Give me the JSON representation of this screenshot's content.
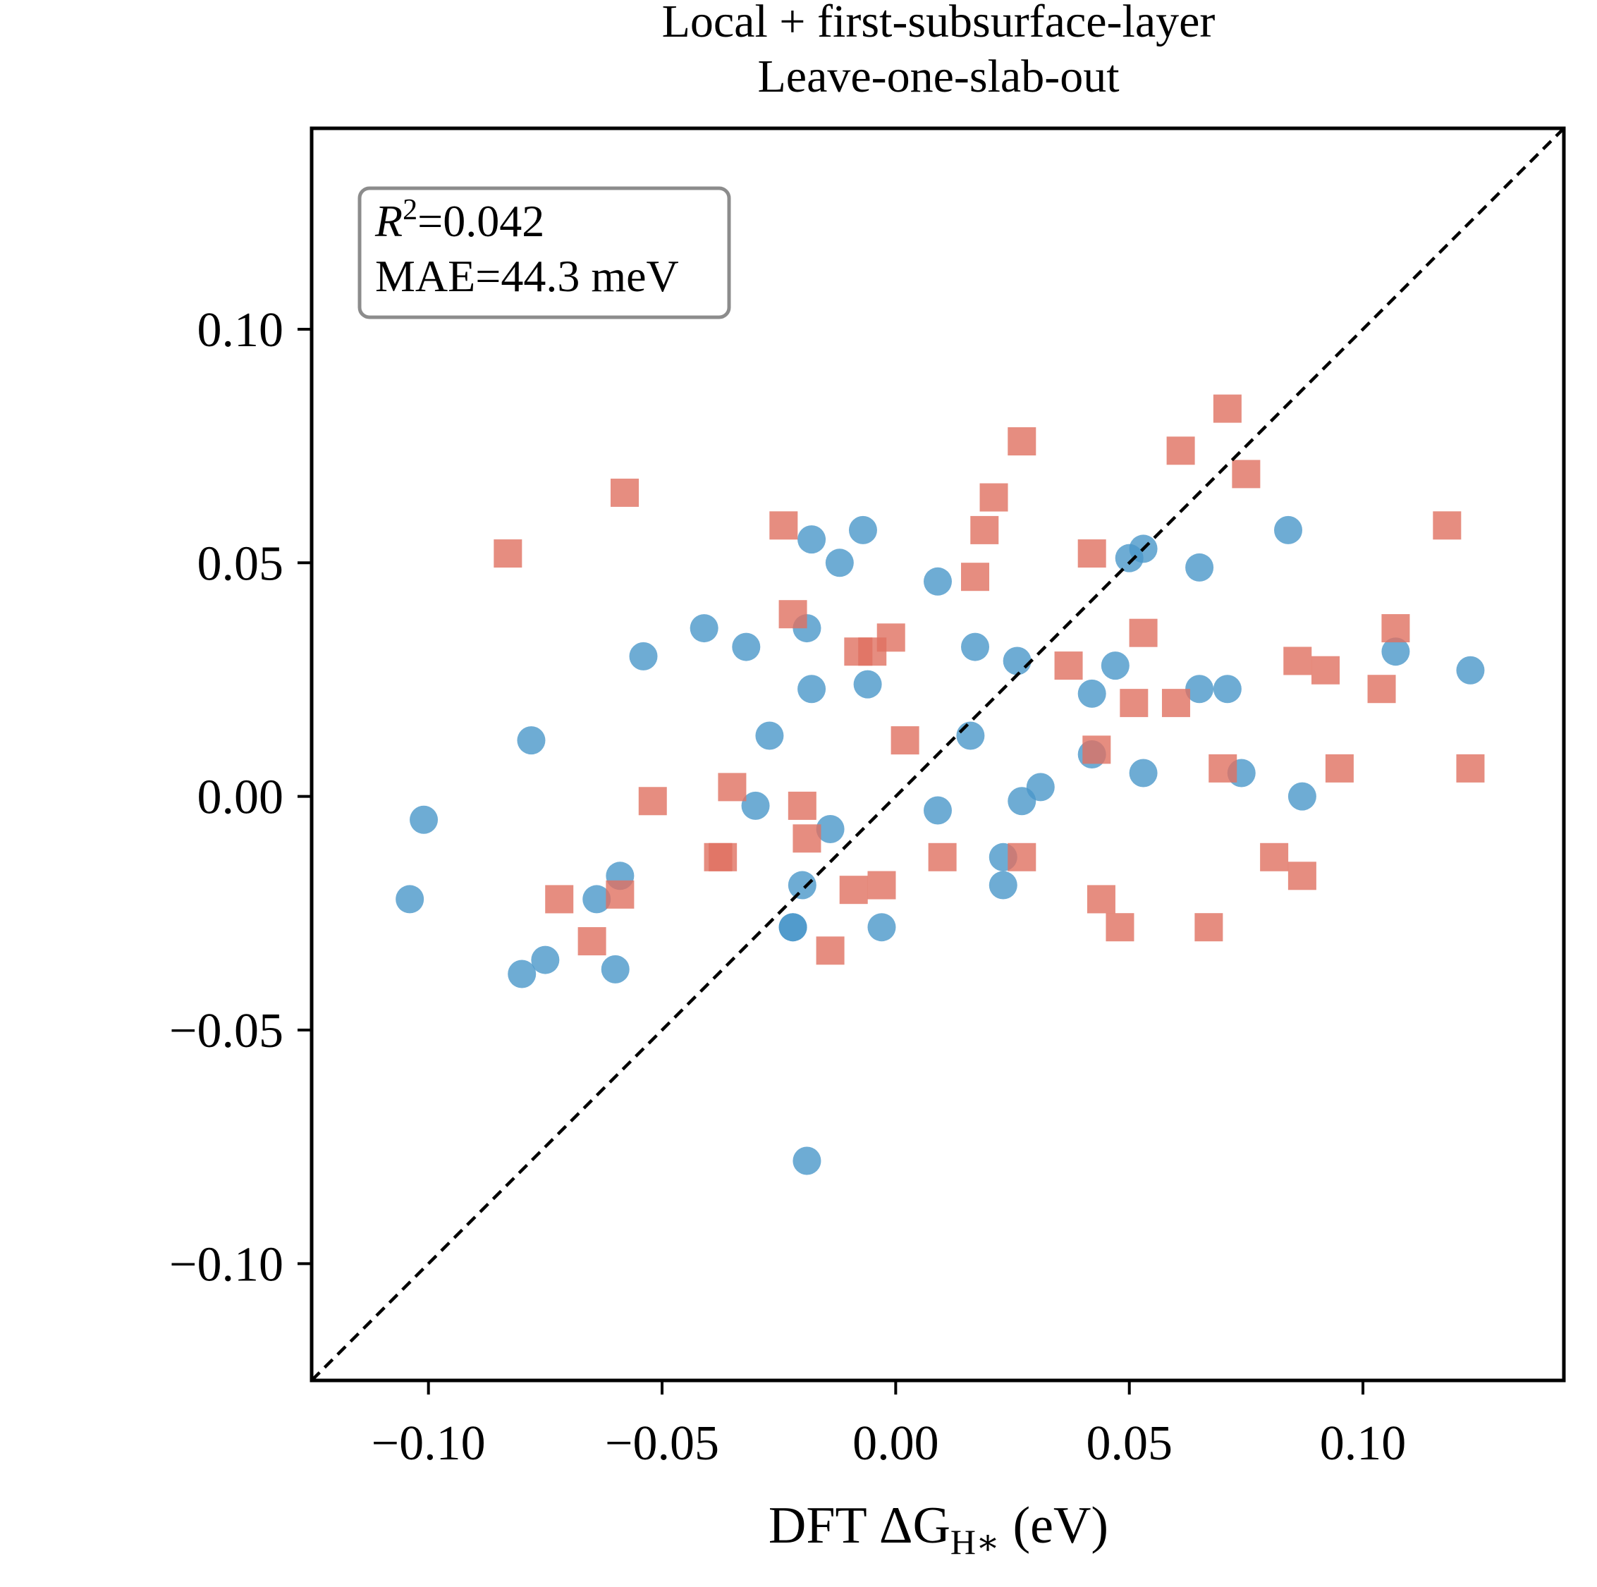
{
  "chart_data": {
    "type": "scatter",
    "title": "Local + first-subsurface-layer",
    "subtitle": "Leave-one-slab-out",
    "xlabel": "DFT ΔG",
    "xlabel_sub": "H∗",
    "xlabel_unit": " (eV)",
    "ylabel": "",
    "xlim": [
      -0.125,
      0.143
    ],
    "ylim": [
      -0.125,
      0.143
    ],
    "xticks": [
      -0.1,
      -0.05,
      0.0,
      0.05,
      0.1
    ],
    "yticks": [
      -0.1,
      -0.05,
      0.0,
      0.05,
      0.1
    ],
    "xtick_labels": [
      "−0.10",
      "−0.05",
      "0.00",
      "0.05",
      "0.10"
    ],
    "ytick_labels": [
      "−0.10",
      "−0.05",
      "0.00",
      "0.05",
      "0.10"
    ],
    "grid": false,
    "legend": "none",
    "reference_line": {
      "type": "y=x",
      "style": "dashed",
      "color": "#000000"
    },
    "stats_box": {
      "r2_symbol": "R",
      "r2_exponent": "2",
      "r2_value": "=0.042",
      "mae": "MAE=44.3 meV"
    },
    "series": [
      {
        "marker": "circle",
        "color": "#4a97c9",
        "points": [
          [
            -0.104,
            -0.022
          ],
          [
            -0.101,
            -0.005
          ],
          [
            -0.08,
            -0.038
          ],
          [
            -0.078,
            0.012
          ],
          [
            -0.075,
            -0.035
          ],
          [
            -0.064,
            -0.022
          ],
          [
            -0.06,
            -0.037
          ],
          [
            -0.059,
            -0.017
          ],
          [
            -0.054,
            0.03
          ],
          [
            -0.041,
            0.036
          ],
          [
            -0.032,
            0.032
          ],
          [
            -0.03,
            -0.002
          ],
          [
            -0.027,
            0.013
          ],
          [
            -0.022,
            -0.028
          ],
          [
            -0.022,
            -0.028
          ],
          [
            -0.02,
            -0.019
          ],
          [
            -0.019,
            0.036
          ],
          [
            -0.018,
            0.023
          ],
          [
            -0.018,
            0.055
          ],
          [
            -0.019,
            -0.078
          ],
          [
            -0.014,
            -0.007
          ],
          [
            -0.012,
            0.05
          ],
          [
            -0.007,
            0.057
          ],
          [
            -0.006,
            0.024
          ],
          [
            -0.003,
            -0.028
          ],
          [
            0.009,
            -0.003
          ],
          [
            0.009,
            0.046
          ],
          [
            0.016,
            0.013
          ],
          [
            0.017,
            0.032
          ],
          [
            0.023,
            -0.019
          ],
          [
            0.023,
            -0.013
          ],
          [
            0.026,
            0.029
          ],
          [
            0.027,
            -0.001
          ],
          [
            0.031,
            0.002
          ],
          [
            0.042,
            0.022
          ],
          [
            0.042,
            0.009
          ],
          [
            0.047,
            0.028
          ],
          [
            0.05,
            0.051
          ],
          [
            0.053,
            0.053
          ],
          [
            0.053,
            0.005
          ],
          [
            0.065,
            0.049
          ],
          [
            0.065,
            0.023
          ],
          [
            0.071,
            0.023
          ],
          [
            0.074,
            0.005
          ],
          [
            0.084,
            0.057
          ],
          [
            0.087,
            0.0
          ],
          [
            0.107,
            0.031
          ],
          [
            0.123,
            0.027
          ]
        ]
      },
      {
        "marker": "square",
        "color": "#e07160",
        "points": [
          [
            -0.083,
            0.052
          ],
          [
            -0.072,
            -0.022
          ],
          [
            -0.065,
            -0.031
          ],
          [
            -0.059,
            -0.021
          ],
          [
            -0.058,
            0.065
          ],
          [
            -0.052,
            -0.001
          ],
          [
            -0.038,
            -0.013
          ],
          [
            -0.037,
            -0.013
          ],
          [
            -0.035,
            0.002
          ],
          [
            -0.024,
            0.058
          ],
          [
            -0.022,
            0.039
          ],
          [
            -0.02,
            -0.002
          ],
          [
            -0.019,
            -0.009
          ],
          [
            -0.014,
            -0.033
          ],
          [
            -0.009,
            -0.02
          ],
          [
            -0.008,
            0.031
          ],
          [
            -0.005,
            0.031
          ],
          [
            -0.003,
            -0.019
          ],
          [
            -0.001,
            0.034
          ],
          [
            0.002,
            0.012
          ],
          [
            0.01,
            -0.013
          ],
          [
            0.017,
            0.047
          ],
          [
            0.019,
            0.057
          ],
          [
            0.021,
            0.064
          ],
          [
            0.027,
            0.076
          ],
          [
            0.027,
            -0.013
          ],
          [
            0.037,
            0.028
          ],
          [
            0.042,
            0.052
          ],
          [
            0.043,
            0.01
          ],
          [
            0.044,
            -0.022
          ],
          [
            0.048,
            -0.028
          ],
          [
            0.051,
            0.02
          ],
          [
            0.053,
            0.035
          ],
          [
            0.06,
            0.02
          ],
          [
            0.061,
            0.074
          ],
          [
            0.067,
            -0.028
          ],
          [
            0.07,
            0.006
          ],
          [
            0.071,
            0.083
          ],
          [
            0.075,
            0.069
          ],
          [
            0.081,
            -0.013
          ],
          [
            0.086,
            0.029
          ],
          [
            0.087,
            -0.017
          ],
          [
            0.092,
            0.027
          ],
          [
            0.095,
            0.006
          ],
          [
            0.104,
            0.023
          ],
          [
            0.107,
            0.036
          ],
          [
            0.118,
            0.058
          ],
          [
            0.123,
            0.006
          ]
        ]
      }
    ]
  }
}
